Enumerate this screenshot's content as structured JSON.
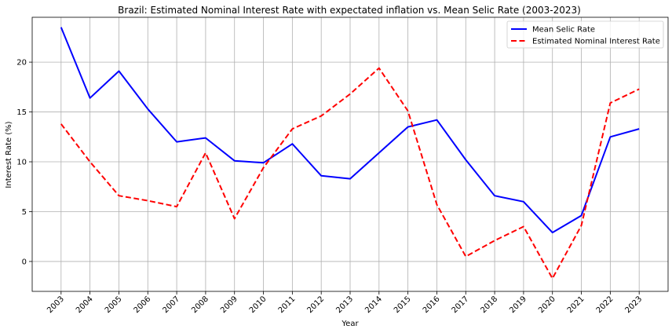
{
  "chart_data": {
    "type": "line",
    "title": "Brazil: Estimated Nominal Interest Rate with expectated inflation vs. Mean Selic Rate (2003-2023)",
    "xlabel": "Year",
    "ylabel": "Interest Rate (%)",
    "x": [
      2003,
      2004,
      2005,
      2006,
      2007,
      2008,
      2009,
      2010,
      2011,
      2012,
      2013,
      2014,
      2015,
      2016,
      2017,
      2018,
      2019,
      2020,
      2021,
      2022,
      2023
    ],
    "ylim": [
      -3,
      24.5
    ],
    "yticks": [
      0,
      5,
      10,
      15,
      20
    ],
    "grid": true,
    "legend_position": "top-right",
    "series": [
      {
        "name": "Mean Selic Rate",
        "color": "#0000ff",
        "style": "solid",
        "values": [
          23.5,
          16.4,
          19.1,
          15.3,
          12.0,
          12.4,
          10.1,
          9.9,
          11.8,
          8.6,
          8.3,
          10.9,
          13.5,
          14.2,
          10.2,
          6.6,
          6.0,
          2.9,
          4.6,
          12.5,
          13.3
        ]
      },
      {
        "name": "Estimated Nominal Interest Rate",
        "color": "#ff0000",
        "style": "dashed",
        "values": [
          13.8,
          10.0,
          6.6,
          6.1,
          5.5,
          10.9,
          4.3,
          9.4,
          13.3,
          14.6,
          16.8,
          19.4,
          15.1,
          5.7,
          0.5,
          2.1,
          3.5,
          -1.7,
          3.6,
          15.9,
          17.3
        ]
      }
    ]
  }
}
